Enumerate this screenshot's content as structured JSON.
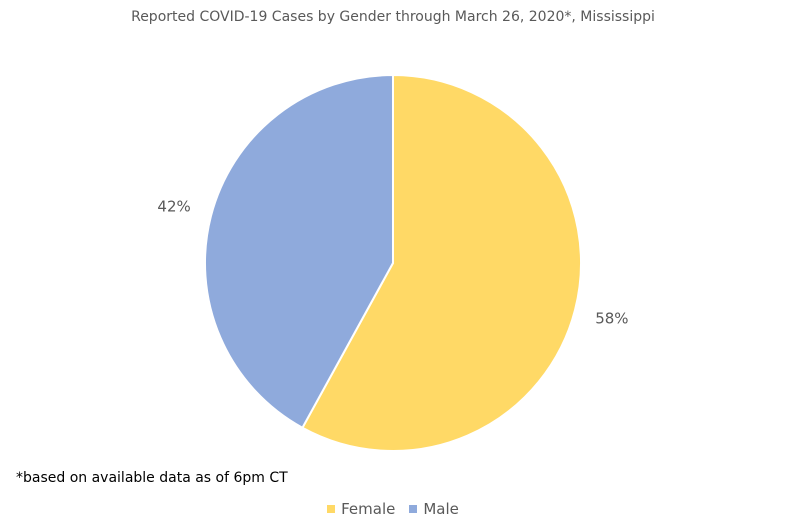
{
  "chart_data": {
    "type": "pie",
    "title": "Reported COVID-19 Cases by Gender through March 26, 2020*, Mississippi",
    "categories": [
      "Female",
      "Male"
    ],
    "values": [
      58,
      42
    ],
    "data_labels": [
      "58%",
      "42%"
    ],
    "colors": [
      "#FFD966",
      "#8FAADC"
    ],
    "legend_position": "bottom",
    "footnote": "*based on available data as of 6pm CT"
  }
}
